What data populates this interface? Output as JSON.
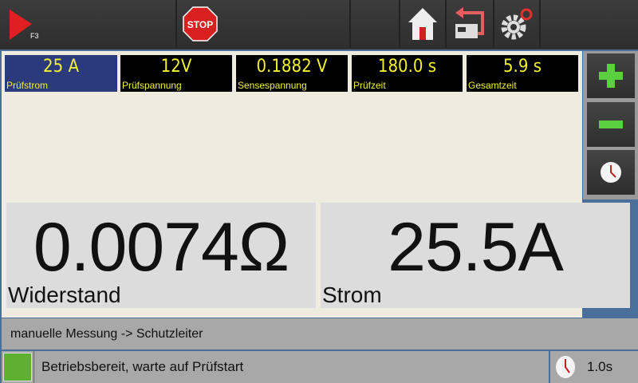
{
  "toolbar": {
    "start_key": "F3",
    "stop_label": "STOP"
  },
  "values": [
    {
      "value": "25 A",
      "label": "Prüfstrom",
      "selected": true
    },
    {
      "value": "12V",
      "label": "Prüfspannung"
    },
    {
      "value": "0.1882 V",
      "label": "Sensespannung"
    },
    {
      "value": "180.0 s",
      "label": "Prüfzeit"
    },
    {
      "value": "5.9 s",
      "label": "Gesamtzeit"
    }
  ],
  "resistance": {
    "value": "0.0074Ω",
    "label": "Widerstand"
  },
  "current": {
    "value": "25.5A",
    "label": "Strom"
  },
  "path": "manuelle Messung -> Schutzleiter",
  "status": {
    "text": "Betriebsbereit, warte auf Prüfstart",
    "indicator_color": "#5fb030"
  },
  "timer": "1.0s",
  "colors": {
    "value_text": "#f2f230",
    "selected_box": "#2a3a7a",
    "accent_green": "#5ad040"
  }
}
